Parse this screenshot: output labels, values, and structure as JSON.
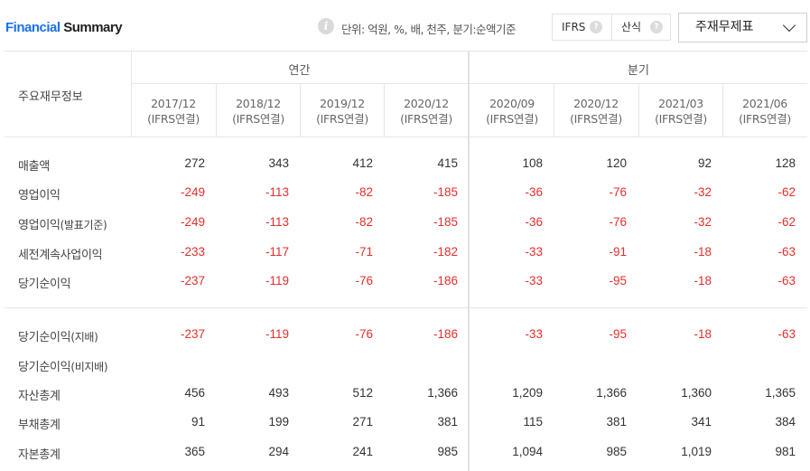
{
  "header": {
    "title_part1": "Financial",
    "title_part2": "Summary",
    "unit_text": "단위: 억원, %, 배, 천주, 분기:순액기준",
    "toggle": [
      {
        "label": "IFRS",
        "help": "?"
      },
      {
        "label": "산식",
        "help": "?"
      }
    ],
    "select_value": "주재무제표"
  },
  "table": {
    "row_header_label": "주요재무정보",
    "groups": [
      {
        "label": "연간"
      },
      {
        "label": "분기"
      }
    ],
    "periods": [
      {
        "date": "2017/12",
        "basis": "(IFRS연결)"
      },
      {
        "date": "2018/12",
        "basis": "(IFRS연결)"
      },
      {
        "date": "2019/12",
        "basis": "(IFRS연결)"
      },
      {
        "date": "2020/12",
        "basis": "(IFRS연결)"
      },
      {
        "date": "2020/09",
        "basis": "(IFRS연결)"
      },
      {
        "date": "2020/12",
        "basis": "(IFRS연결)"
      },
      {
        "date": "2021/03",
        "basis": "(IFRS연결)"
      },
      {
        "date": "2021/06",
        "basis": "(IFRS연결)"
      }
    ],
    "rows": [
      {
        "label": "매출액",
        "sub": "",
        "values": [
          "272",
          "343",
          "412",
          "415",
          "108",
          "120",
          "92",
          "128"
        ]
      },
      {
        "label": "영업이익",
        "sub": "",
        "values": [
          "-249",
          "-113",
          "-82",
          "-185",
          "-36",
          "-76",
          "-32",
          "-62"
        ]
      },
      {
        "label": "영업이익",
        "sub": "(발표기준)",
        "values": [
          "-249",
          "-113",
          "-82",
          "-185",
          "-36",
          "-76",
          "-32",
          "-62"
        ]
      },
      {
        "label": "세전계속사업이익",
        "sub": "",
        "values": [
          "-233",
          "-117",
          "-71",
          "-182",
          "-33",
          "-91",
          "-18",
          "-63"
        ]
      },
      {
        "label": "당기순이익",
        "sub": "",
        "values": [
          "-237",
          "-119",
          "-76",
          "-186",
          "-33",
          "-95",
          "-18",
          "-63"
        ]
      },
      {
        "label": "당기순이익",
        "sub": "(지배)",
        "values": [
          "-237",
          "-119",
          "-76",
          "-186",
          "-33",
          "-95",
          "-18",
          "-63"
        ]
      },
      {
        "label": "당기순이익",
        "sub": "(비지배)",
        "values": [
          "",
          "",
          "",
          "",
          "",
          "",
          "",
          ""
        ]
      },
      {
        "label": "자산총계",
        "sub": "",
        "values": [
          "456",
          "493",
          "512",
          "1,366",
          "1,209",
          "1,366",
          "1,360",
          "1,365"
        ]
      },
      {
        "label": "부채총계",
        "sub": "",
        "values": [
          "91",
          "199",
          "271",
          "381",
          "115",
          "381",
          "341",
          "384"
        ]
      },
      {
        "label": "자본총계",
        "sub": "",
        "values": [
          "365",
          "294",
          "241",
          "985",
          "1,094",
          "985",
          "1,019",
          "981"
        ]
      }
    ]
  }
}
